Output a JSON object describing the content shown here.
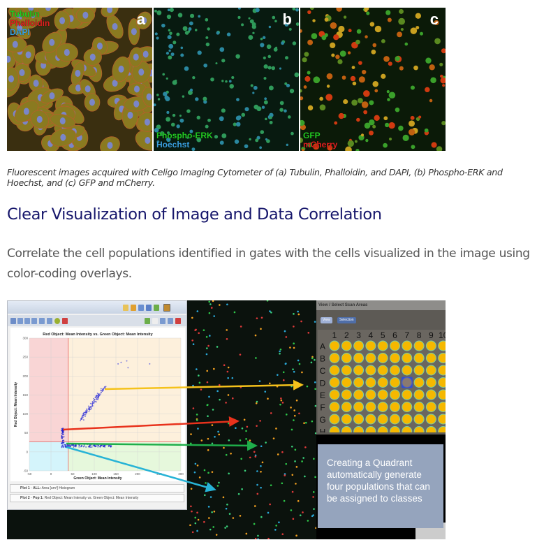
{
  "top_figure": {
    "panels": [
      {
        "letter": "a",
        "labels": [
          {
            "text": "Tubulin",
            "color": "#22cc22"
          },
          {
            "text": "Phalloidin",
            "color": "#e02020"
          },
          {
            "text": "DAPI",
            "color": "#3aa0e0"
          }
        ]
      },
      {
        "letter": "b",
        "labels": [
          {
            "text": "Phospho-ERK",
            "color": "#22cc22"
          },
          {
            "text": "Hoechst",
            "color": "#3aa0e0"
          }
        ]
      },
      {
        "letter": "c",
        "labels": [
          {
            "text": "GFP",
            "color": "#22cc22"
          },
          {
            "text": "mCherry",
            "color": "#e02020"
          }
        ]
      }
    ]
  },
  "caption": "Fluorescent images acquired with Celigo Imaging Cytometer of (a) Tubulin, Phalloidin, and DAPI, (b) Phospho-ERK and Hoechst, and (c) GFP and mCherry.",
  "heading": "Clear Visualization of Image and Data Correlation",
  "paragraph": "Correlate the cell populations identified in gates with the cells visualized in the image using color-coding overlays.",
  "bottom_figure": {
    "plot": {
      "title": "Red Object: Mean Intensity vs. Green Object: Mean Intensity",
      "xlabel": "Green Object: Mean Intensity",
      "ylabel": "Red Object: Mean Intensity",
      "x_ticks": [
        "-50",
        "0",
        "50",
        "100",
        "150",
        "200",
        "250",
        "300"
      ],
      "y_ticks": [
        "300",
        "250",
        "200",
        "150",
        "100",
        "50",
        "0",
        "-50"
      ]
    },
    "plot_list": [
      {
        "name": "Plot 1",
        "pop": "ALL:",
        "desc": "Area [um²] Histogram"
      },
      {
        "name": "Plot 2",
        "pop": "Pop 1:",
        "desc": "Red Object: Mean Intensity vs. Green Object: Mean Intensity"
      }
    ],
    "plate": {
      "header": "View / Select Scan Areas",
      "view_button": "View",
      "selection_button": "Selection",
      "columns": [
        "1",
        "2",
        "3",
        "4",
        "5",
        "6",
        "7",
        "8",
        "9",
        "10"
      ],
      "rows": [
        "A",
        "B",
        "C",
        "D",
        "E",
        "F",
        "G",
        "H"
      ],
      "selected_well": "D7"
    },
    "info_box": "Creating a Quadrant automatically generate four populations that can be assigned to classes",
    "arrow_colors": [
      "#f5c21b",
      "#e8321c",
      "#1fae4a",
      "#27b3d6"
    ]
  }
}
